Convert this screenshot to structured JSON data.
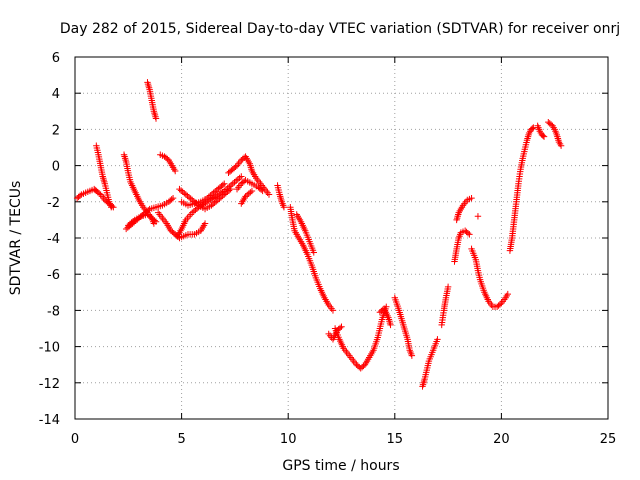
{
  "chart_data": {
    "type": "scatter",
    "title": "Day 282 of 2015, Sidereal Day-to-day VTEC variation (SDTVAR) for receiver onrj",
    "xlabel": "GPS time / hours",
    "ylabel": "SDTVAR / TECUs",
    "xlim": [
      0,
      25
    ],
    "ylim": [
      -14,
      6
    ],
    "xticks": [
      "0",
      "5",
      "10",
      "15",
      "20",
      "25"
    ],
    "yticks": [
      "6",
      "4",
      "2",
      "0",
      "-2",
      "-4",
      "-6",
      "-8",
      "-10",
      "-12",
      "-14"
    ],
    "grid": true,
    "marker": "plus",
    "color": "#ff0000",
    "series": [
      {
        "segments": [
          [
            [
              0.1,
              -1.8
            ],
            [
              0.3,
              -1.6
            ],
            [
              0.5,
              -1.5
            ],
            [
              0.7,
              -1.4
            ],
            [
              0.9,
              -1.3
            ],
            [
              1.0,
              -1.4
            ],
            [
              1.2,
              -1.6
            ],
            [
              1.4,
              -1.9
            ],
            [
              1.6,
              -2.1
            ],
            [
              1.8,
              -2.3
            ]
          ],
          [
            [
              1.0,
              1.1
            ],
            [
              1.1,
              0.6
            ],
            [
              1.2,
              0.0
            ],
            [
              1.3,
              -0.6
            ],
            [
              1.4,
              -1.0
            ],
            [
              1.5,
              -1.5
            ],
            [
              1.6,
              -2.0
            ],
            [
              1.7,
              -2.3
            ]
          ],
          [
            [
              2.3,
              0.6
            ],
            [
              2.4,
              0.2
            ],
            [
              2.5,
              -0.4
            ],
            [
              2.6,
              -0.9
            ],
            [
              2.8,
              -1.4
            ],
            [
              3.0,
              -1.9
            ],
            [
              3.2,
              -2.3
            ],
            [
              3.4,
              -2.6
            ],
            [
              3.6,
              -2.9
            ],
            [
              3.7,
              -3.2
            ]
          ],
          [
            [
              2.4,
              -3.5
            ],
            [
              2.7,
              -3.2
            ],
            [
              3.0,
              -2.9
            ],
            [
              3.3,
              -2.6
            ],
            [
              3.5,
              -2.4
            ],
            [
              3.8,
              -2.3
            ],
            [
              4.1,
              -2.2
            ],
            [
              4.4,
              -2.0
            ],
            [
              4.6,
              -1.8
            ]
          ],
          [
            [
              2.5,
              -3.3
            ],
            [
              2.8,
              -3.0
            ],
            [
              3.1,
              -2.8
            ],
            [
              3.4,
              -2.7
            ],
            [
              3.6,
              -2.9
            ],
            [
              3.8,
              -3.1
            ]
          ],
          [
            [
              3.4,
              4.6
            ],
            [
              3.5,
              4.2
            ],
            [
              3.6,
              3.6
            ],
            [
              3.7,
              3.0
            ],
            [
              3.8,
              2.6
            ]
          ],
          [
            [
              4.0,
              0.6
            ],
            [
              4.2,
              0.5
            ],
            [
              4.4,
              0.3
            ],
            [
              4.6,
              -0.1
            ],
            [
              4.7,
              -0.3
            ]
          ],
          [
            [
              3.9,
              -2.6
            ],
            [
              4.1,
              -2.9
            ],
            [
              4.3,
              -3.2
            ],
            [
              4.5,
              -3.6
            ],
            [
              4.7,
              -3.8
            ],
            [
              4.9,
              -4.0
            ],
            [
              5.1,
              -3.9
            ],
            [
              5.3,
              -3.8
            ],
            [
              5.6,
              -3.8
            ],
            [
              5.9,
              -3.6
            ],
            [
              6.1,
              -3.2
            ]
          ],
          [
            [
              4.8,
              -3.9
            ],
            [
              5.0,
              -3.5
            ],
            [
              5.2,
              -3.0
            ],
            [
              5.5,
              -2.6
            ],
            [
              5.8,
              -2.3
            ],
            [
              6.2,
              -2.0
            ],
            [
              6.6,
              -1.7
            ],
            [
              7.0,
              -1.4
            ],
            [
              7.4,
              -1.0
            ],
            [
              7.8,
              -0.6
            ]
          ],
          [
            [
              4.9,
              -1.3
            ],
            [
              5.2,
              -1.6
            ],
            [
              5.5,
              -1.9
            ],
            [
              5.8,
              -2.2
            ],
            [
              6.1,
              -2.4
            ],
            [
              6.4,
              -2.2
            ],
            [
              6.7,
              -1.9
            ],
            [
              7.0,
              -1.6
            ],
            [
              7.3,
              -1.3
            ]
          ],
          [
            [
              5.0,
              -2.0
            ],
            [
              5.3,
              -2.2
            ],
            [
              5.6,
              -2.1
            ],
            [
              5.9,
              -2.0
            ],
            [
              6.2,
              -1.8
            ],
            [
              6.5,
              -1.5
            ],
            [
              6.8,
              -1.2
            ],
            [
              7.0,
              -1.0
            ]
          ],
          [
            [
              7.2,
              -0.4
            ],
            [
              7.4,
              -0.2
            ],
            [
              7.6,
              0.0
            ],
            [
              7.8,
              0.3
            ],
            [
              8.0,
              0.5
            ],
            [
              8.2,
              0.1
            ],
            [
              8.3,
              -0.3
            ],
            [
              8.5,
              -0.7
            ],
            [
              8.7,
              -1.0
            ],
            [
              8.9,
              -1.3
            ],
            [
              9.1,
              -1.6
            ]
          ],
          [
            [
              7.6,
              -1.3
            ],
            [
              7.8,
              -1.0
            ],
            [
              8.0,
              -0.8
            ],
            [
              8.3,
              -1.0
            ],
            [
              8.6,
              -1.2
            ],
            [
              8.8,
              -1.4
            ]
          ],
          [
            [
              7.8,
              -2.1
            ],
            [
              8.0,
              -1.7
            ],
            [
              8.3,
              -1.4
            ]
          ],
          [
            [
              9.5,
              -1.1
            ],
            [
              9.6,
              -1.6
            ],
            [
              9.7,
              -2.0
            ],
            [
              9.8,
              -2.3
            ]
          ],
          [
            [
              10.1,
              -2.3
            ],
            [
              10.2,
              -3.0
            ],
            [
              10.3,
              -3.6
            ],
            [
              10.5,
              -4.0
            ],
            [
              10.7,
              -4.4
            ],
            [
              10.9,
              -4.9
            ],
            [
              11.1,
              -5.5
            ],
            [
              11.3,
              -6.2
            ],
            [
              11.5,
              -6.8
            ],
            [
              11.7,
              -7.3
            ],
            [
              11.9,
              -7.7
            ],
            [
              12.1,
              -8.0
            ]
          ],
          [
            [
              10.4,
              -2.7
            ],
            [
              10.6,
              -3.1
            ],
            [
              10.8,
              -3.6
            ],
            [
              11.0,
              -4.2
            ],
            [
              11.2,
              -4.8
            ]
          ],
          [
            [
              12.2,
              -9.0
            ],
            [
              12.4,
              -9.6
            ],
            [
              12.6,
              -10.1
            ],
            [
              12.8,
              -10.4
            ],
            [
              13.0,
              -10.7
            ],
            [
              13.2,
              -11.0
            ],
            [
              13.4,
              -11.2
            ],
            [
              13.6,
              -11.0
            ],
            [
              13.8,
              -10.6
            ],
            [
              14.0,
              -10.2
            ],
            [
              14.2,
              -9.5
            ],
            [
              14.4,
              -8.5
            ],
            [
              14.6,
              -7.8
            ]
          ],
          [
            [
              11.9,
              -9.3
            ],
            [
              12.1,
              -9.6
            ],
            [
              12.3,
              -9.1
            ],
            [
              12.5,
              -8.9
            ]
          ],
          [
            [
              14.3,
              -8.1
            ],
            [
              14.5,
              -7.9
            ],
            [
              14.7,
              -8.4
            ],
            [
              14.8,
              -8.8
            ]
          ],
          [
            [
              15.0,
              -7.3
            ],
            [
              15.2,
              -8.0
            ],
            [
              15.4,
              -8.8
            ],
            [
              15.6,
              -9.6
            ],
            [
              15.7,
              -10.2
            ],
            [
              15.8,
              -10.5
            ]
          ],
          [
            [
              16.3,
              -12.2
            ],
            [
              16.4,
              -11.8
            ],
            [
              16.5,
              -11.3
            ],
            [
              16.6,
              -10.8
            ],
            [
              16.8,
              -10.2
            ],
            [
              17.0,
              -9.6
            ]
          ],
          [
            [
              17.2,
              -8.8
            ],
            [
              17.3,
              -8.0
            ],
            [
              17.4,
              -7.3
            ],
            [
              17.5,
              -6.7
            ]
          ],
          [
            [
              17.8,
              -5.3
            ],
            [
              17.9,
              -4.6
            ],
            [
              18.0,
              -4.0
            ],
            [
              18.1,
              -3.7
            ],
            [
              18.3,
              -3.6
            ],
            [
              18.5,
              -3.8
            ]
          ],
          [
            [
              17.9,
              -3.0
            ],
            [
              18.0,
              -2.6
            ],
            [
              18.2,
              -2.2
            ],
            [
              18.4,
              -1.9
            ],
            [
              18.6,
              -1.8
            ]
          ],
          [
            [
              18.6,
              -4.6
            ],
            [
              18.8,
              -5.2
            ],
            [
              18.9,
              -5.8
            ],
            [
              19.0,
              -6.3
            ],
            [
              19.2,
              -7.0
            ],
            [
              19.4,
              -7.5
            ],
            [
              19.6,
              -7.8
            ],
            [
              19.8,
              -7.8
            ],
            [
              20.0,
              -7.6
            ],
            [
              20.2,
              -7.3
            ],
            [
              20.3,
              -7.1
            ]
          ],
          [
            [
              18.9,
              -2.8
            ]
          ],
          [
            [
              20.4,
              -4.7
            ],
            [
              20.5,
              -4.0
            ],
            [
              20.6,
              -3.0
            ],
            [
              20.7,
              -2.0
            ],
            [
              20.8,
              -1.0
            ],
            [
              20.9,
              -0.2
            ],
            [
              21.0,
              0.4
            ],
            [
              21.1,
              0.9
            ],
            [
              21.2,
              1.4
            ],
            [
              21.3,
              1.8
            ],
            [
              21.4,
              2.0
            ],
            [
              21.5,
              2.1
            ]
          ],
          [
            [
              21.7,
              2.2
            ],
            [
              21.8,
              1.9
            ],
            [
              21.9,
              1.7
            ],
            [
              22.0,
              1.6
            ]
          ],
          [
            [
              22.2,
              2.4
            ],
            [
              22.4,
              2.2
            ],
            [
              22.5,
              2.0
            ],
            [
              22.6,
              1.7
            ],
            [
              22.7,
              1.3
            ],
            [
              22.8,
              1.1
            ]
          ]
        ]
      }
    ]
  }
}
